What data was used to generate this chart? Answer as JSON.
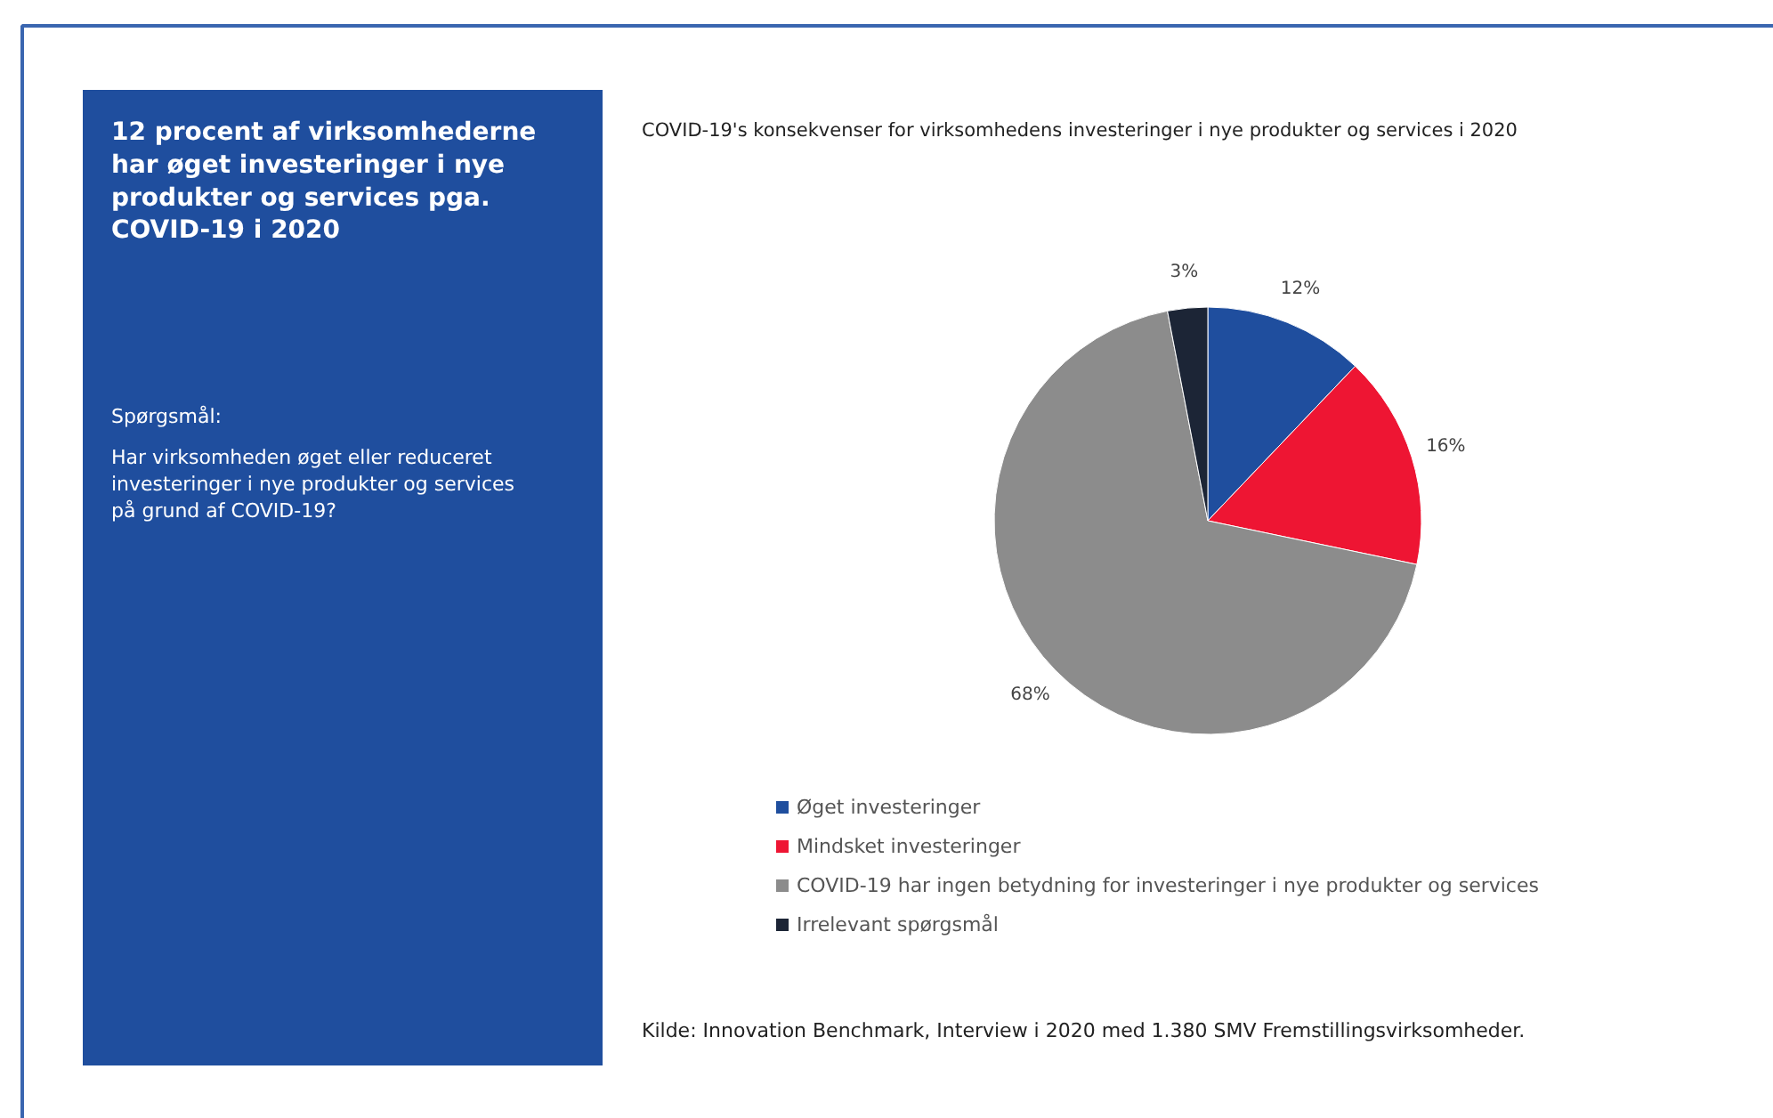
{
  "chart_data": {
    "type": "pie",
    "title": "COVID-19's konsekvenser for virksomhedens investeringer i nye produkter og services i 2020",
    "subtitle": "12 procent af virksomhederne har øget investeringer i nye produkter og services pga. COVID-19 i 2020",
    "categories": [
      "Øget investeringer",
      "Mindsket investeringer",
      "COVID-19 har ingen betydning for investeringer i nye produkter og services",
      "Irrelevant spørgsmål"
    ],
    "values": [
      12,
      16,
      68,
      3
    ],
    "colors": [
      "#1f4e9e",
      "#ee1533",
      "#8c8c8c",
      "#1c2536"
    ],
    "value_labels": [
      "12%",
      "16%",
      "68%",
      "3%"
    ],
    "legend": "bottom",
    "annotations": [
      "Spørgsmål:",
      "Har virksomheden øget eller reduceret investeringer i nye produkter og services på grund af COVID-19?",
      "Kilde: Innovation Benchmark, Interview i 2020 med 1.380 SMV Fremstillingsvirksomheder."
    ]
  }
}
